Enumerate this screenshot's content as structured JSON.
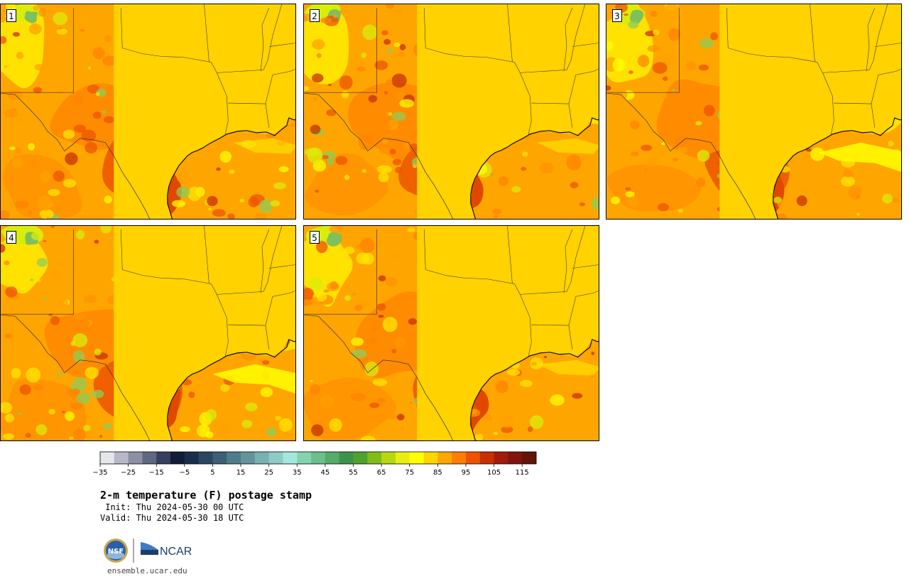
{
  "panels": [
    {
      "label": "1",
      "variant": 0
    },
    {
      "label": "2",
      "variant": 1
    },
    {
      "label": "3",
      "variant": 2
    },
    {
      "label": "4",
      "variant": 3
    },
    {
      "label": "5",
      "variant": 4
    }
  ],
  "colorbar": {
    "colors": [
      "#e4e6ea",
      "#b6b8c6",
      "#8c90a4",
      "#5f6781",
      "#353f5e",
      "#121c36",
      "#1c2d4c",
      "#2b4662",
      "#3b5f76",
      "#4f7c8a",
      "#63949d",
      "#79b0b2",
      "#8fcbc6",
      "#a3e8dd",
      "#83d3ae",
      "#6bbf8a",
      "#55ac6a",
      "#3e934b",
      "#4fa22d",
      "#80bd1b",
      "#b8d612",
      "#e8ef10",
      "#ffff00",
      "#ffd500",
      "#ffa700",
      "#ff7e00",
      "#ee5400",
      "#c83000",
      "#a21c0b",
      "#82140d",
      "#621508"
    ],
    "ticks": [
      "−35",
      "−25",
      "−15",
      "−5",
      "5",
      "15",
      "25",
      "35",
      "45",
      "55",
      "65",
      "75",
      "85",
      "95",
      "105",
      "115"
    ]
  },
  "header": {
    "title": "2-m temperature (F) postage stamp",
    "init": " Init: Thu 2024-05-30 00 UTC",
    "valid": "Valid: Thu 2024-05-30 18 UTC"
  },
  "logos": {
    "nsf": "NSF",
    "ncar": "NCAR"
  },
  "footer": {
    "site": "ensemble.ucar.edu"
  }
}
